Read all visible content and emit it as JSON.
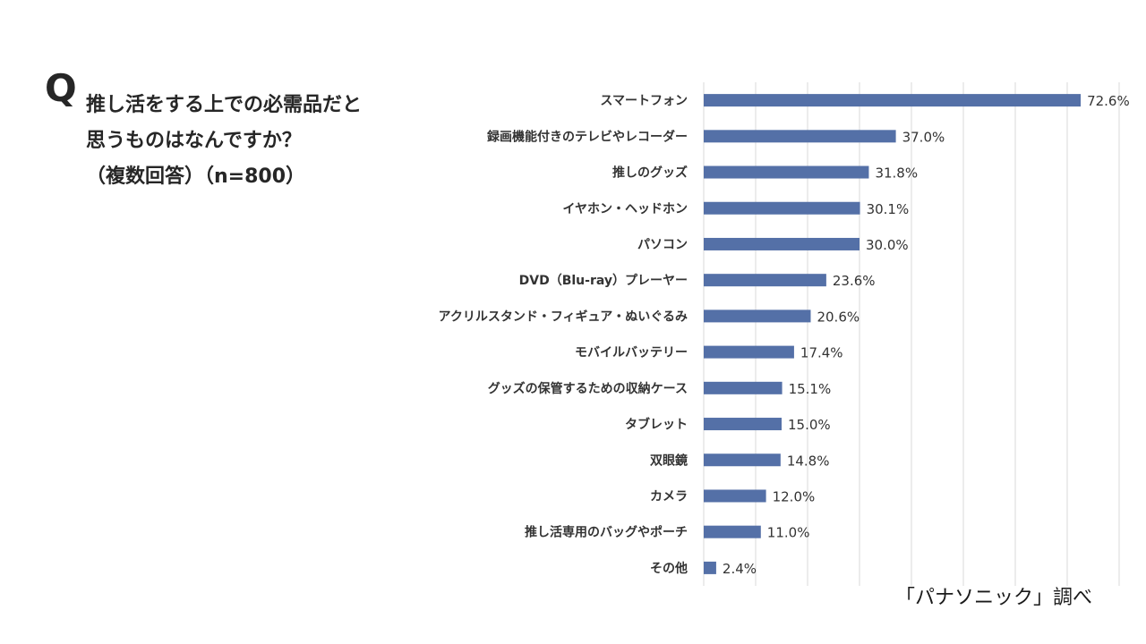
{
  "question": {
    "mark": "Q",
    "lines": [
      "推し活をする上での必需品だと",
      "思うものはなんですか？",
      "（複数回答）（n=800）"
    ]
  },
  "source": "「パナソニック」調べ",
  "colors": {
    "bar": "#5470A7",
    "grid": "#d9d9d9"
  },
  "chart_data": {
    "type": "bar",
    "orientation": "horizontal",
    "categories": [
      "スマートフォン",
      "録画機能付きのテレビやレコーダー",
      "推しのグッズ",
      "イヤホン・ヘッドホン",
      "パソコン",
      "DVD（Blu-ray）プレーヤー",
      "アクリルスタンド・フィギュア・ぬいぐるみ",
      "モバイルバッテリー",
      "グッズの保管するための収納ケース",
      "タブレット",
      "双眼鏡",
      "カメラ",
      "推し活専用のバッグやポーチ",
      "その他"
    ],
    "values": [
      72.6,
      37.0,
      31.8,
      30.1,
      30.0,
      23.6,
      20.6,
      17.4,
      15.1,
      15.0,
      14.8,
      12.0,
      11.0,
      2.4
    ],
    "value_labels": [
      "72.6%",
      "37.0%",
      "31.8%",
      "30.1%",
      "30.0%",
      "23.6%",
      "20.6%",
      "17.4%",
      "15.1%",
      "15.0%",
      "14.8%",
      "12.0%",
      "11.0%",
      "2.4%"
    ],
    "xlim": [
      0,
      80
    ],
    "grid": true,
    "legend": false
  }
}
